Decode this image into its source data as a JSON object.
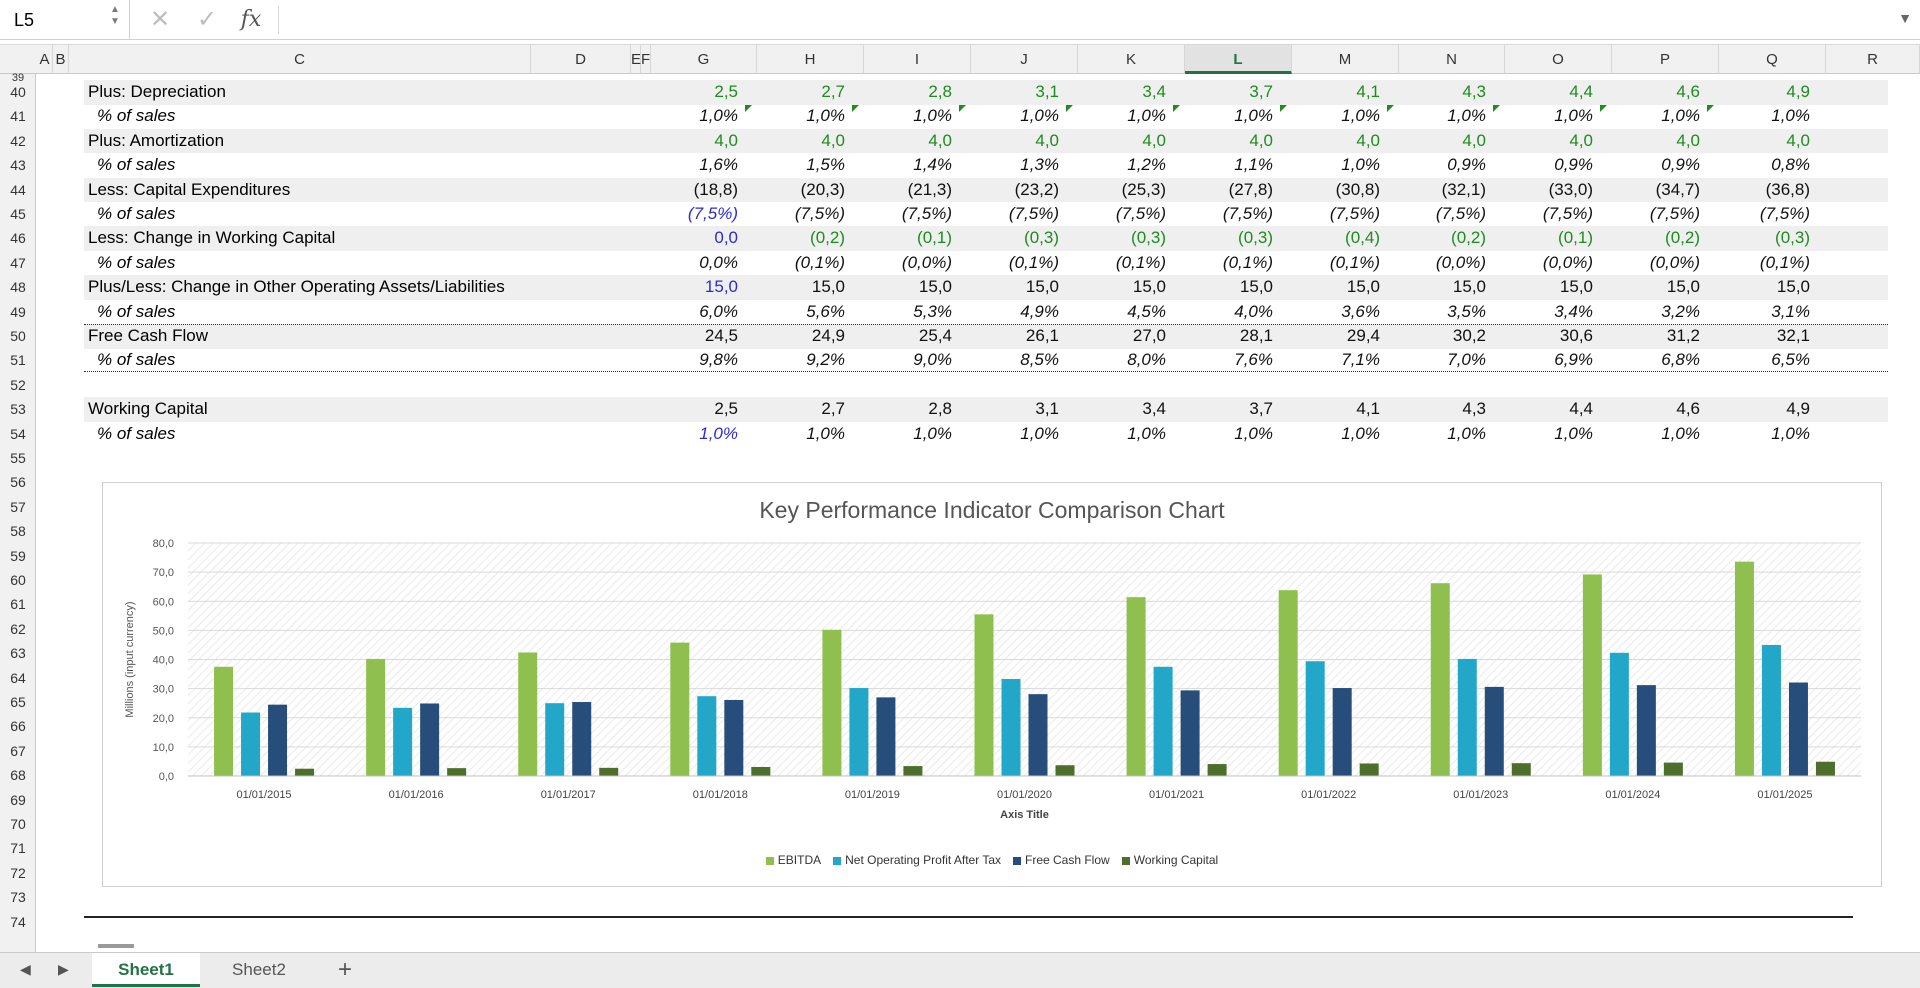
{
  "formula_bar": {
    "name_box": "L5",
    "formula": ""
  },
  "columns": [
    "A",
    "B",
    "C",
    "D",
    "E",
    "F",
    "G",
    "H",
    "I",
    "J",
    "K",
    "L",
    "M",
    "N",
    "O",
    "P",
    "Q",
    "R"
  ],
  "active_column": "L",
  "rows_start": 39,
  "row_numbers": [
    39,
    40,
    41,
    42,
    43,
    44,
    45,
    46,
    47,
    48,
    49,
    50,
    51,
    52,
    53,
    54,
    55,
    56,
    57,
    58,
    59,
    60,
    61,
    62,
    63,
    64,
    65,
    66,
    67,
    68,
    69,
    70,
    71,
    72,
    73,
    74
  ],
  "table": [
    {
      "row": 40,
      "label": "Plus: Depreciation",
      "indent": false,
      "shade": true,
      "italic": false,
      "values": [
        "2,5",
        "2,7",
        "2,8",
        "3,1",
        "3,4",
        "3,7",
        "4,1",
        "4,3",
        "4,4",
        "4,6",
        "4,9"
      ],
      "color": "green"
    },
    {
      "row": 41,
      "label": "% of sales",
      "indent": true,
      "shade": false,
      "italic": true,
      "marks": true,
      "values": [
        "1,0%",
        "1,0%",
        "1,0%",
        "1,0%",
        "1,0%",
        "1,0%",
        "1,0%",
        "1,0%",
        "1,0%",
        "1,0%",
        "1,0%"
      ],
      "color": "black"
    },
    {
      "row": 42,
      "label": "Plus: Amortization",
      "indent": false,
      "shade": true,
      "italic": false,
      "values": [
        "4,0",
        "4,0",
        "4,0",
        "4,0",
        "4,0",
        "4,0",
        "4,0",
        "4,0",
        "4,0",
        "4,0",
        "4,0"
      ],
      "color": "green"
    },
    {
      "row": 43,
      "label": "% of sales",
      "indent": true,
      "shade": false,
      "italic": true,
      "values": [
        "1,6%",
        "1,5%",
        "1,4%",
        "1,3%",
        "1,2%",
        "1,1%",
        "1,0%",
        "0,9%",
        "0,9%",
        "0,9%",
        "0,8%"
      ],
      "color": "black"
    },
    {
      "row": 44,
      "label": "Less: Capital Expenditures",
      "indent": false,
      "shade": true,
      "italic": false,
      "values": [
        "(18,8)",
        "(20,3)",
        "(21,3)",
        "(23,2)",
        "(25,3)",
        "(27,8)",
        "(30,8)",
        "(32,1)",
        "(33,0)",
        "(34,7)",
        "(36,8)"
      ],
      "color": "black"
    },
    {
      "row": 45,
      "label": "% of sales",
      "indent": true,
      "shade": false,
      "italic": true,
      "first_blue": true,
      "values": [
        "(7,5%)",
        "(7,5%)",
        "(7,5%)",
        "(7,5%)",
        "(7,5%)",
        "(7,5%)",
        "(7,5%)",
        "(7,5%)",
        "(7,5%)",
        "(7,5%)",
        "(7,5%)"
      ],
      "color": "black"
    },
    {
      "row": 46,
      "label": "Less: Change in Working Capital",
      "indent": false,
      "shade": true,
      "italic": false,
      "first_blue": true,
      "values": [
        "0,0",
        "(0,2)",
        "(0,1)",
        "(0,3)",
        "(0,3)",
        "(0,3)",
        "(0,4)",
        "(0,2)",
        "(0,1)",
        "(0,2)",
        "(0,3)"
      ],
      "color": "green"
    },
    {
      "row": 47,
      "label": "% of sales",
      "indent": true,
      "shade": false,
      "italic": true,
      "values": [
        "0,0%",
        "(0,1%)",
        "(0,0%)",
        "(0,1%)",
        "(0,1%)",
        "(0,1%)",
        "(0,1%)",
        "(0,0%)",
        "(0,0%)",
        "(0,0%)",
        "(0,1%)"
      ],
      "color": "black"
    },
    {
      "row": 48,
      "label": "Plus/Less: Change in Other Operating Assets/Liabilities",
      "indent": false,
      "shade": true,
      "italic": false,
      "first_blue": true,
      "values": [
        "15,0",
        "15,0",
        "15,0",
        "15,0",
        "15,0",
        "15,0",
        "15,0",
        "15,0",
        "15,0",
        "15,0",
        "15,0"
      ],
      "color": "black"
    },
    {
      "row": 49,
      "label": "% of sales",
      "indent": true,
      "shade": false,
      "italic": true,
      "values": [
        "6,0%",
        "5,6%",
        "5,3%",
        "4,9%",
        "4,5%",
        "4,0%",
        "3,6%",
        "3,5%",
        "3,4%",
        "3,2%",
        "3,1%"
      ],
      "color": "black"
    },
    {
      "row": 50,
      "label": "Free Cash Flow",
      "indent": false,
      "shade": true,
      "italic": false,
      "dotted_top": true,
      "values": [
        "24,5",
        "24,9",
        "25,4",
        "26,1",
        "27,0",
        "28,1",
        "29,4",
        "30,2",
        "30,6",
        "31,2",
        "32,1"
      ],
      "color": "black"
    },
    {
      "row": 51,
      "label": "% of sales",
      "indent": true,
      "shade": false,
      "italic": true,
      "dotted_bot": true,
      "values": [
        "9,8%",
        "9,2%",
        "9,0%",
        "8,5%",
        "8,0%",
        "7,6%",
        "7,1%",
        "7,0%",
        "6,9%",
        "6,8%",
        "6,5%"
      ],
      "color": "black"
    },
    {
      "row": 53,
      "label": "Working Capital",
      "indent": false,
      "shade": true,
      "italic": false,
      "values": [
        "2,5",
        "2,7",
        "2,8",
        "3,1",
        "3,4",
        "3,7",
        "4,1",
        "4,3",
        "4,4",
        "4,6",
        "4,9"
      ],
      "color": "black"
    },
    {
      "row": 54,
      "label": "% of sales",
      "indent": true,
      "shade": false,
      "italic": true,
      "first_blue": true,
      "values": [
        "1,0%",
        "1,0%",
        "1,0%",
        "1,0%",
        "1,0%",
        "1,0%",
        "1,0%",
        "1,0%",
        "1,0%",
        "1,0%",
        "1,0%"
      ],
      "color": "black"
    }
  ],
  "chart_data": {
    "type": "bar",
    "title": "Key Performance Indicator Comparison Chart",
    "xlabel": "Axis Title",
    "ylabel": "Millions (input currency)",
    "ylim": [
      0,
      80
    ],
    "yticks": [
      "0,0",
      "10,0",
      "20,0",
      "30,0",
      "40,0",
      "50,0",
      "60,0",
      "70,0",
      "80,0"
    ],
    "legend_position": "bottom",
    "categories": [
      "01/01/2015",
      "01/01/2016",
      "01/01/2017",
      "01/01/2018",
      "01/01/2019",
      "01/01/2020",
      "01/01/2021",
      "01/01/2022",
      "01/01/2023",
      "01/01/2024",
      "01/01/2025"
    ],
    "series": [
      {
        "name": "EBITDA",
        "color": "#8fc04f",
        "values": [
          37.5,
          40.2,
          42.4,
          45.8,
          50.2,
          55.5,
          61.4,
          63.8,
          66.2,
          69.2,
          73.6
        ]
      },
      {
        "name": "Net Operating Profit After Tax",
        "color": "#23a7c9",
        "values": [
          21.8,
          23.4,
          25.0,
          27.4,
          30.2,
          33.3,
          37.5,
          39.4,
          40.2,
          42.3,
          45.0
        ]
      },
      {
        "name": "Free Cash Flow",
        "color": "#274e7a",
        "values": [
          24.5,
          24.9,
          25.4,
          26.1,
          27.0,
          28.1,
          29.4,
          30.2,
          30.6,
          31.2,
          32.1
        ]
      },
      {
        "name": "Working Capital",
        "color": "#4e6e2b",
        "values": [
          2.5,
          2.7,
          2.8,
          3.1,
          3.4,
          3.7,
          4.1,
          4.3,
          4.4,
          4.6,
          4.9
        ]
      }
    ]
  },
  "sheets": [
    "Sheet1",
    "Sheet2"
  ],
  "active_sheet": "Sheet1",
  "icons": {
    "cancel": "✕",
    "enter": "✓",
    "fx": "fx",
    "add": "+",
    "prev": "◀",
    "next": "▶",
    "dropdown": "▼",
    "stepper": "▲▼"
  }
}
